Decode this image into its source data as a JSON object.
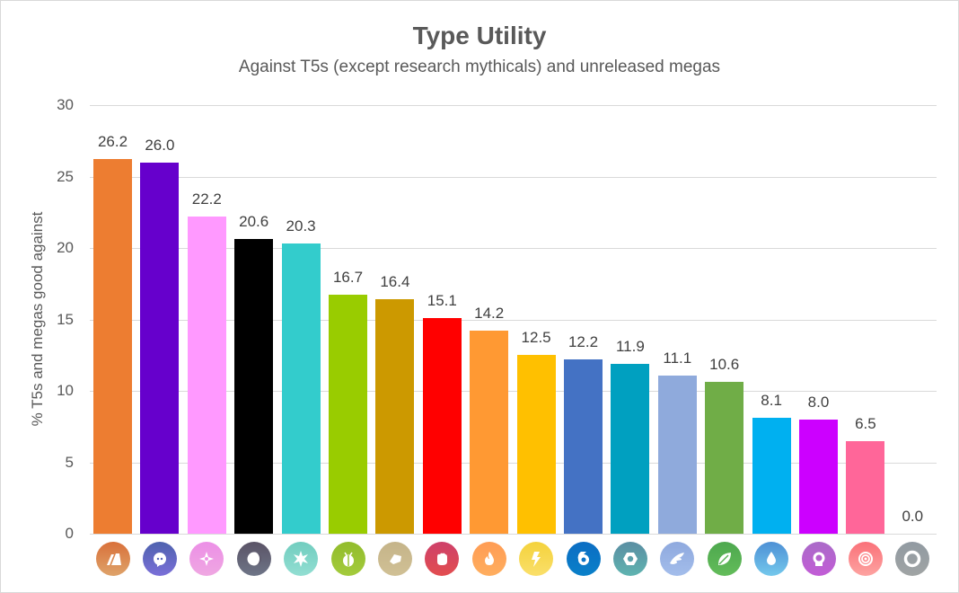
{
  "chart_data": {
    "type": "bar",
    "title": "Type Utility",
    "subtitle": "Against T5s (except research mythicals) and unreleased megas",
    "xlabel": "",
    "ylabel": "% T5s and megas good against",
    "ylim": [
      0,
      30
    ],
    "yticks": [
      0,
      5,
      10,
      15,
      20,
      25,
      30
    ],
    "grid": true,
    "legend": "none",
    "categories": [
      "Ground",
      "Ghost",
      "Fairy",
      "Dark",
      "Ice",
      "Bug",
      "Rock",
      "Fighting",
      "Fire",
      "Electric",
      "Dragon",
      "Steel",
      "Flying",
      "Grass",
      "Water",
      "Poison",
      "Psychic",
      "Normal"
    ],
    "values": [
      26.2,
      26.0,
      22.2,
      20.6,
      20.3,
      16.7,
      16.4,
      15.1,
      14.2,
      12.5,
      12.2,
      11.9,
      11.1,
      10.6,
      8.1,
      8.0,
      6.5,
      0.0
    ],
    "value_labels": [
      "26.2",
      "26.0",
      "22.2",
      "20.6",
      "20.3",
      "16.7",
      "16.4",
      "15.1",
      "14.2",
      "12.5",
      "12.2",
      "11.9",
      "11.1",
      "10.6",
      "8.1",
      "8.0",
      "6.5",
      "0.0"
    ],
    "bar_colors": [
      "#ED7D31",
      "#6600CC",
      "#FF99FF",
      "#000000",
      "#33CCCC",
      "#99CC00",
      "#CC9900",
      "#FF0000",
      "#FF9933",
      "#FFC000",
      "#4472C4",
      "#00A0C0",
      "#8FAADC",
      "#70AD47",
      "#00B0F0",
      "#CC00FF",
      "#FF6699",
      "#A0A0A0"
    ]
  },
  "icons": [
    {
      "type": "ground",
      "icon": "ground-icon",
      "top": "#D9703A",
      "bottom": "#DEA36A"
    },
    {
      "type": "ghost",
      "icon": "ghost-icon",
      "top": "#4E62AE",
      "bottom": "#7A6FD8"
    },
    {
      "type": "fairy",
      "icon": "fairy-icon",
      "top": "#EC8FE6",
      "bottom": "#EFA7E2"
    },
    {
      "type": "dark",
      "icon": "dark-icon",
      "top": "#5A5366",
      "bottom": "#6E7587"
    },
    {
      "type": "ice",
      "icon": "ice-icon",
      "top": "#71CDBF",
      "bottom": "#92DED2"
    },
    {
      "type": "bug",
      "icon": "bug-icon",
      "top": "#92BC2C",
      "bottom": "#A3CB3C"
    },
    {
      "type": "rock",
      "icon": "rock-icon",
      "top": "#C5B489",
      "bottom": "#D0C095"
    },
    {
      "type": "fighting",
      "icon": "fighting-icon",
      "top": "#CE406A",
      "bottom": "#E24D4F"
    },
    {
      "type": "fire",
      "icon": "fire-icon",
      "top": "#FF9C54",
      "bottom": "#FFAE5F"
    },
    {
      "type": "electric",
      "icon": "electric-icon",
      "top": "#F4D23C",
      "bottom": "#FADF6A"
    },
    {
      "type": "dragon",
      "icon": "dragon-icon",
      "top": "#0B6DC3",
      "bottom": "#0A80C9"
    },
    {
      "type": "steel",
      "icon": "steel-icon",
      "top": "#5A8EA2",
      "bottom": "#5FB3B0"
    },
    {
      "type": "flying",
      "icon": "flying-icon",
      "top": "#8FA9DE",
      "bottom": "#A3BDEB"
    },
    {
      "type": "grass",
      "icon": "grass-icon",
      "top": "#4DA84E",
      "bottom": "#63BC5A"
    },
    {
      "type": "water",
      "icon": "water-icon",
      "top": "#4D90D5",
      "bottom": "#74C8EC"
    },
    {
      "type": "poison",
      "icon": "poison-icon",
      "top": "#AA6BC8",
      "bottom": "#C25CD6"
    },
    {
      "type": "psychic",
      "icon": "psychic-icon",
      "top": "#FA7179",
      "bottom": "#FDA3A1"
    },
    {
      "type": "normal",
      "icon": "normal-icon",
      "top": "#919AA2",
      "bottom": "#A0A4A4"
    }
  ]
}
